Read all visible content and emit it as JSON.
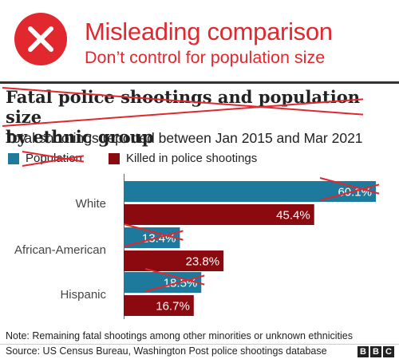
{
  "banner": {
    "title": "Misleading comparison",
    "subtitle": "Don’t control for population size",
    "icon": "close-circle-icon",
    "accent_color": "#e0282e"
  },
  "chart_data": {
    "type": "bar",
    "orientation": "horizontal",
    "title_part1": "Fatal police shootings and ",
    "title_struck": "population size",
    "title_part2": "by ethnic group",
    "subtitle": "Total shootings reported between Jan 2015 and Mar 2021",
    "categories": [
      "White",
      "African-American",
      "Hispanic"
    ],
    "series": [
      {
        "name": "Population",
        "values": [
          60.1,
          13.4,
          18.5
        ],
        "labels": [
          "60.1%",
          "13.4%",
          "18.5%"
        ],
        "color": "#1d7a9c",
        "struck_out": true
      },
      {
        "name": "Killed in police shootings",
        "values": [
          45.4,
          23.8,
          16.7
        ],
        "labels": [
          "45.4%",
          "23.8%",
          "16.7%"
        ],
        "color": "#8b0a10",
        "struck_out": false
      }
    ],
    "value_unit": "%",
    "xlim": [
      0,
      60.1
    ],
    "legend_position": "top-left",
    "strike_color": "#e0282e"
  },
  "footnote": "Note: Remaining fatal shootings among other minorities or unknown ethnicities",
  "source": "Source: US Census Bureau, Washington Post police shootings database",
  "logo": [
    "B",
    "B",
    "C"
  ]
}
